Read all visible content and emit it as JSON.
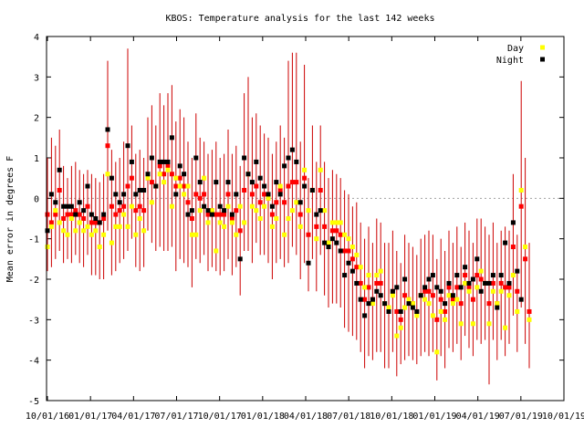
{
  "chart_data": {
    "type": "scatter",
    "title": "KBOS: Temperature analysis for the last 142 weeks",
    "xlabel": "",
    "ylabel": "Mean error in degrees F",
    "ylim": [
      -5,
      4
    ],
    "yticks": [
      -5,
      -4,
      -3,
      -2,
      -1,
      0,
      1,
      2,
      3,
      4
    ],
    "xtick_labels": [
      "10/01/16",
      "01/01/17",
      "04/01/17",
      "07/01/17",
      "10/01/17",
      "01/01/18",
      "04/01/18",
      "07/01/18",
      "10/01/18",
      "01/01/19",
      "04/01/19",
      "07/01/19",
      "10/01/19"
    ],
    "zero_line": true,
    "legend_position": "top-right",
    "colors": {
      "day": "#ffff00",
      "night": "#000000",
      "combined": "#ff0000",
      "error_bar": "#cc0000",
      "zero_line": "#a0a0a0"
    },
    "series": [
      {
        "name": "Day",
        "values": [
          -1.2,
          -0.7,
          -0.3,
          -0.6,
          -0.8,
          -0.9,
          -0.5,
          -0.8,
          -0.6,
          -0.8,
          -0.7,
          -0.9,
          -0.8,
          -1.2,
          -0.9,
          0.6,
          -1.1,
          -0.7,
          -0.7,
          -0.4,
          -0.7,
          -0.2,
          -0.9,
          -0.5,
          -0.8,
          0.5,
          -0.1,
          0.3,
          0.6,
          0.4,
          0.7,
          -0.2,
          0.5,
          0.3,
          0.1,
          0.3,
          -0.9,
          -0.9,
          -0.3,
          0.5,
          -0.6,
          -0.3,
          -1.3,
          -0.6,
          -0.7,
          -0.2,
          -0.6,
          -0.9,
          -0.2,
          -0.6,
          0.6,
          -0.2,
          -0.3,
          -0.5,
          -0.2,
          0.0,
          -0.7,
          -0.5,
          0.3,
          -0.9,
          -0.5,
          -0.3,
          -0.1,
          -0.7,
          0.7,
          -0.3,
          0.2,
          -1.0,
          0.7,
          -0.3,
          -1.1,
          -0.6,
          -0.6,
          -0.6,
          -0.9,
          -1.0,
          -1.2,
          -1.4,
          -1.7,
          -2.2,
          -1.9,
          -2.6,
          -1.9,
          -1.8,
          -2.6,
          -2.7,
          -2.4,
          -3.4,
          -3.2,
          -2.7,
          -2.5,
          -2.6,
          -2.9,
          -2.4,
          -2.5,
          -2.6,
          -2.9,
          -3.8,
          -2.8,
          -3.0,
          -2.4,
          -2.6,
          -2.5,
          -3.1,
          -2.1,
          -2.3,
          -3.1,
          -2.2,
          -1.8,
          -2.1,
          -3.1,
          -2.3,
          -2.6,
          -2.3,
          -3.2,
          -2.4,
          -1.9,
          -2.8,
          0.2,
          -1.2,
          -3.0
        ],
        "marker": "day"
      },
      {
        "name": "Night",
        "values": [
          -0.8,
          0.1,
          -0.1,
          0.7,
          -0.2,
          -0.2,
          -0.2,
          -0.4,
          -0.1,
          -0.3,
          0.3,
          -0.4,
          -0.5,
          -0.6,
          -0.4,
          1.7,
          0.5,
          0.1,
          -0.1,
          0.1,
          1.3,
          0.9,
          0.1,
          0.2,
          0.2,
          0.6,
          1.0,
          0.3,
          0.9,
          0.9,
          0.9,
          1.5,
          0.1,
          0.8,
          0.6,
          -0.4,
          -0.3,
          1.0,
          0.4,
          -0.2,
          -0.3,
          -0.4,
          0.4,
          -0.2,
          -0.3,
          0.4,
          -0.4,
          0.1,
          -1.5,
          1.0,
          0.6,
          0.4,
          0.9,
          0.5,
          0.3,
          0.1,
          -0.2,
          0.4,
          0.1,
          0.8,
          1.0,
          1.2,
          0.9,
          -0.1,
          0.3,
          -1.6,
          0.2,
          -0.4,
          -0.3,
          -1.1,
          -1.2,
          -1.0,
          -1.1,
          -1.3,
          -1.9,
          -1.6,
          -1.8,
          -2.1,
          -2.5,
          -2.9,
          -2.6,
          -2.5,
          -2.3,
          -2.4,
          -2.6,
          -2.8,
          -2.3,
          -2.2,
          -2.8,
          -2.0,
          -2.6,
          -2.7,
          -2.8,
          -2.4,
          -2.2,
          -2.0,
          -1.9,
          -2.2,
          -2.3,
          -2.6,
          -2.1,
          -2.4,
          -1.9,
          -2.2,
          -1.7,
          -2.1,
          -2.0,
          -1.5,
          -2.3,
          -2.1,
          -2.1,
          -1.9,
          -2.7,
          -1.9,
          -1.1,
          -2.1,
          -0.6,
          -1.8,
          -2.5
        ],
        "marker": "night"
      },
      {
        "name": "",
        "values": [
          -0.4,
          -0.6,
          -0.4,
          0.2,
          -0.5,
          -0.4,
          -0.4,
          -0.3,
          -0.4,
          -0.5,
          -0.2,
          -0.6,
          -0.6,
          -0.6,
          -0.5,
          1.3,
          -0.2,
          -0.4,
          -0.3,
          -0.2,
          0.3,
          0.5,
          -0.3,
          -0.2,
          -0.3,
          0.5,
          0.4,
          0.3,
          0.8,
          0.6,
          0.8,
          0.6,
          0.3,
          0.5,
          0.3,
          -0.1,
          -0.5,
          0.1,
          0.0,
          0.1,
          -0.4,
          -0.3,
          -0.4,
          -0.4,
          -0.4,
          0.1,
          -0.5,
          -0.3,
          -0.8,
          0.2,
          0.6,
          0.1,
          0.3,
          -0.1,
          0.1,
          0.0,
          -0.4,
          -0.1,
          0.2,
          -0.1,
          0.3,
          0.4,
          0.4,
          -0.4,
          0.5,
          -0.9,
          0.2,
          -0.7,
          0.2,
          -0.7,
          -1.1,
          -0.8,
          -0.8,
          -0.9,
          -1.3,
          -1.3,
          -1.5,
          -1.7,
          -2.1,
          -2.5,
          -2.2,
          -2.5,
          -2.1,
          -2.1,
          -2.6,
          -2.7,
          -2.3,
          -2.8,
          -3.0,
          -2.4,
          -2.5,
          -2.6,
          -2.8,
          -2.4,
          -2.3,
          -2.3,
          -2.4,
          -3.0,
          -2.5,
          -2.8,
          -2.2,
          -2.5,
          -2.2,
          -2.6,
          -1.9,
          -2.2,
          -2.5,
          -1.9,
          -2.0,
          -2.1,
          -2.6,
          -2.1,
          -2.6,
          -2.1,
          -2.2,
          -2.2,
          -1.2,
          -2.3,
          -0.2,
          -1.5,
          -2.8
        ],
        "marker": "combined"
      }
    ],
    "error_bars": {
      "lower": [
        -1.8,
        -1.7,
        -1.5,
        -1.3,
        -1.6,
        -1.5,
        -1.6,
        -1.4,
        -1.6,
        -1.7,
        -1.4,
        -1.9,
        -1.9,
        -2.0,
        -2.0,
        -0.8,
        -1.9,
        -1.8,
        -1.6,
        -1.5,
        -1.3,
        -1.0,
        -1.7,
        -1.8,
        -1.7,
        -0.8,
        -1.1,
        -1.3,
        -1.2,
        -1.3,
        -1.3,
        -1.2,
        -1.8,
        -1.5,
        -1.6,
        -1.7,
        -2.2,
        -1.5,
        -1.6,
        -1.4,
        -1.8,
        -1.7,
        -1.8,
        -1.9,
        -1.8,
        -1.5,
        -1.9,
        -1.7,
        -2.4,
        -1.3,
        -1.3,
        -1.6,
        -1.1,
        -1.4,
        -1.4,
        -1.6,
        -2.0,
        -1.6,
        -1.5,
        -1.7,
        -1.6,
        -1.2,
        -1.4,
        -2.0,
        -1.6,
        -2.3,
        -1.5,
        -2.3,
        -1.4,
        -2.4,
        -2.7,
        -2.6,
        -2.6,
        -2.7,
        -3.2,
        -3.3,
        -3.4,
        -3.5,
        -3.8,
        -4.2,
        -3.9,
        -4.0,
        -3.8,
        -3.8,
        -4.2,
        -4.2,
        -3.8,
        -4.4,
        -4.1,
        -4.0,
        -3.9,
        -4.0,
        -4.1,
        -3.9,
        -3.8,
        -3.9,
        -3.8,
        -4.5,
        -3.9,
        -4.2,
        -3.7,
        -3.8,
        -3.6,
        -4.0,
        -3.4,
        -3.7,
        -3.9,
        -3.5,
        -3.6,
        -3.5,
        -4.6,
        -3.5,
        -4.0,
        -3.5,
        -3.9,
        -3.6,
        -2.9,
        -3.8,
        -2.7,
        -3.6,
        -4.2
      ],
      "upper": [
        1.0,
        1.5,
        1.3,
        1.7,
        0.8,
        0.5,
        0.8,
        0.9,
        0.7,
        0.6,
        0.7,
        0.6,
        0.5,
        0.4,
        0.6,
        3.4,
        1.2,
        0.9,
        1.0,
        1.4,
        3.7,
        1.8,
        1.1,
        1.2,
        1.0,
        2.0,
        2.3,
        1.8,
        2.6,
        2.3,
        2.6,
        2.8,
        1.9,
        2.2,
        2.0,
        1.4,
        1.0,
        2.1,
        1.5,
        1.4,
        1.1,
        1.2,
        1.4,
        1.0,
        1.1,
        1.7,
        1.1,
        1.3,
        0.8,
        2.6,
        3.0,
        2.0,
        2.1,
        1.8,
        1.6,
        1.5,
        1.1,
        1.4,
        1.8,
        1.5,
        3.4,
        3.6,
        3.6,
        1.4,
        3.3,
        0.5,
        1.8,
        0.9,
        1.8,
        0.9,
        0.5,
        0.7,
        0.6,
        0.5,
        0.2,
        0.1,
        -0.2,
        -0.1,
        -0.6,
        -1.0,
        -0.7,
        -1.1,
        -0.5,
        -0.6,
        -1.1,
        -1.1,
        -0.8,
        -1.3,
        -1.6,
        -0.9,
        -1.1,
        -1.2,
        -1.4,
        -1.0,
        -0.9,
        -0.8,
        -0.9,
        -1.5,
        -1.0,
        -1.3,
        -0.8,
        -1.1,
        -0.7,
        -1.2,
        -0.6,
        -0.8,
        -1.1,
        -0.5,
        -0.5,
        -0.7,
        -0.9,
        -0.6,
        -1.1,
        -0.8,
        -0.7,
        -0.8,
        0.6,
        -0.9,
        2.9,
        1.0,
        -1.1
      ]
    },
    "legend": [
      {
        "label": "Day",
        "color": "#ffff00"
      },
      {
        "label": "Night",
        "color": "#000000"
      }
    ]
  }
}
